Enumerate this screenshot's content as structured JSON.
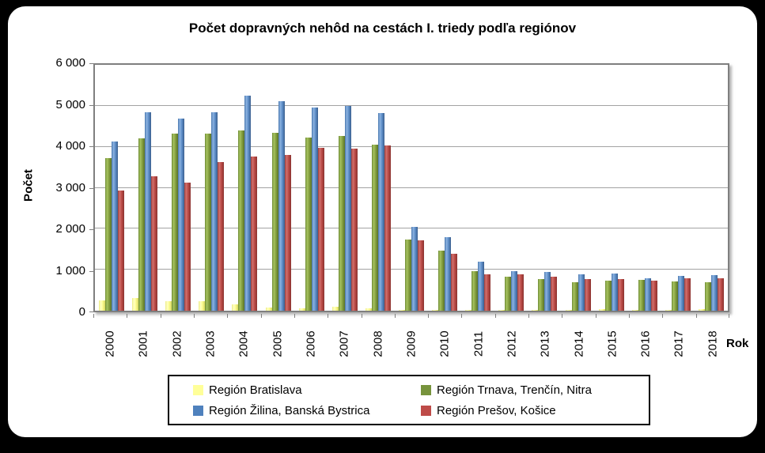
{
  "title": "Počet dopravných nehôd na cestách I. triedy podľa regiónov",
  "y_axis_title": "Počet",
  "x_axis_title": "Rok",
  "chart_data": {
    "type": "bar",
    "title": "Počet dopravných nehôd na cestách I. triedy podľa regiónov",
    "xlabel": "Rok",
    "ylabel": "Počet",
    "ylim": [
      0,
      6000
    ],
    "ytick_interval": 1000,
    "ytick_labels": [
      "0",
      "1 000",
      "2 000",
      "3 000",
      "4 000",
      "5 000",
      "6 000"
    ],
    "grid": true,
    "legend_position": "bottom",
    "categories": [
      "2000",
      "2001",
      "2002",
      "2003",
      "2004",
      "2005",
      "2006",
      "2007",
      "2008",
      "2009",
      "2010",
      "2011",
      "2012",
      "2013",
      "2014",
      "2015",
      "2016",
      "2017",
      "2018"
    ],
    "series": [
      {
        "name": "Región Bratislava",
        "color": "#FFFF99",
        "values": [
          250,
          300,
          230,
          240,
          160,
          80,
          50,
          95,
          65,
          25,
          25,
          20,
          25,
          20,
          25,
          30,
          25,
          25,
          40
        ]
      },
      {
        "name": "Región Trnava, Trenčín, Nitra",
        "color": "#77933C",
        "values": [
          3720,
          4200,
          4320,
          4330,
          4400,
          4350,
          4220,
          4270,
          4050,
          1740,
          1460,
          970,
          830,
          780,
          690,
          740,
          760,
          710,
          700
        ]
      },
      {
        "name": "Región Žilina, Banská Bystrica",
        "color": "#4F81BD",
        "values": [
          4120,
          4850,
          4680,
          4850,
          5250,
          5120,
          4950,
          5000,
          4820,
          2050,
          1790,
          1190,
          960,
          950,
          890,
          910,
          800,
          850,
          870
        ]
      },
      {
        "name": "Región Prešov, Košice",
        "color": "#BE4B48",
        "values": [
          2930,
          3280,
          3130,
          3620,
          3770,
          3810,
          3970,
          3960,
          4030,
          1710,
          1390,
          880,
          890,
          830,
          770,
          780,
          740,
          790,
          800
        ]
      }
    ]
  },
  "colors": {
    "background": "#000000",
    "panel": "#FFFFFF",
    "plot_border": "#7F7F7F",
    "gridline": "#A3A3A3"
  }
}
